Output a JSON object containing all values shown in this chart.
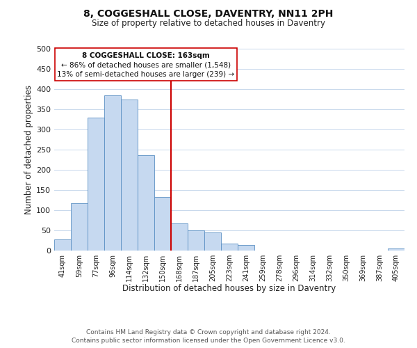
{
  "title": "8, COGGESHALL CLOSE, DAVENTRY, NN11 2PH",
  "subtitle": "Size of property relative to detached houses in Daventry",
  "xlabel": "Distribution of detached houses by size in Daventry",
  "ylabel": "Number of detached properties",
  "bar_labels": [
    "41sqm",
    "59sqm",
    "77sqm",
    "96sqm",
    "114sqm",
    "132sqm",
    "150sqm",
    "168sqm",
    "187sqm",
    "205sqm",
    "223sqm",
    "241sqm",
    "259sqm",
    "278sqm",
    "296sqm",
    "314sqm",
    "332sqm",
    "350sqm",
    "369sqm",
    "387sqm",
    "405sqm"
  ],
  "bar_values": [
    28,
    117,
    330,
    385,
    375,
    237,
    133,
    68,
    50,
    45,
    18,
    13,
    0,
    0,
    0,
    0,
    0,
    0,
    0,
    0,
    5
  ],
  "bar_color": "#c6d9f0",
  "bar_edge_color": "#5a8fc3",
  "vline_index": 7,
  "vline_color": "#cc0000",
  "annotation_title": "8 COGGESHALL CLOSE: 163sqm",
  "annotation_line1": "← 86% of detached houses are smaller (1,548)",
  "annotation_line2": "13% of semi-detached houses are larger (239) →",
  "annotation_box_color": "#ffffff",
  "annotation_box_edge": "#cc0000",
  "ylim": [
    0,
    500
  ],
  "yticks": [
    0,
    50,
    100,
    150,
    200,
    250,
    300,
    350,
    400,
    450,
    500
  ],
  "footer1": "Contains HM Land Registry data © Crown copyright and database right 2024.",
  "footer2": "Contains public sector information licensed under the Open Government Licence v3.0.",
  "background_color": "#ffffff",
  "grid_color": "#c8d8ec"
}
